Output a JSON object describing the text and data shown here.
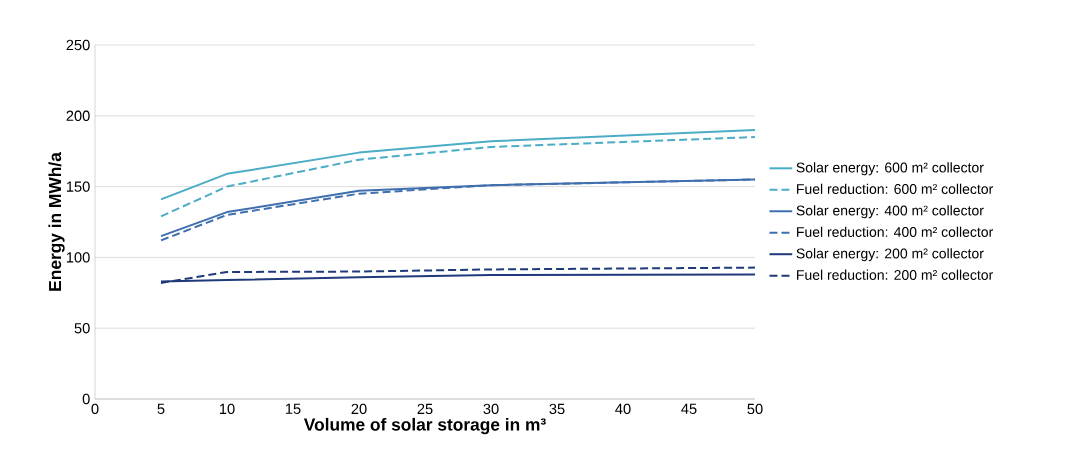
{
  "chart_data": {
    "type": "line",
    "xlabel": "Volume of solar storage in m³",
    "ylabel": "Energy in MWh/a",
    "xlim": [
      0,
      50
    ],
    "xticks": [
      0,
      5,
      10,
      15,
      20,
      25,
      30,
      35,
      40,
      45,
      50
    ],
    "ylim": [
      0,
      250
    ],
    "yticks": [
      0,
      50,
      100,
      150,
      200,
      250
    ],
    "grid": "y",
    "legend": "right",
    "marker": "none",
    "x": [
      5,
      10,
      20,
      30,
      50
    ],
    "series": [
      {
        "name": "Solar energy: 600 m² collector",
        "color": "#4bacc6",
        "line_style": "solid",
        "values": [
          141,
          159,
          174,
          182,
          190
        ]
      },
      {
        "name": "Fuel reduction: 600 m² collector",
        "color": "#4bacc6",
        "line_style": "dashed",
        "values": [
          129,
          150,
          169,
          178,
          185
        ]
      },
      {
        "name": "Solar energy: 400 m² collector",
        "color": "#3f6fae",
        "line_style": "solid",
        "values": [
          115,
          132,
          147,
          151,
          155
        ]
      },
      {
        "name": "Fuel reduction: 400 m² collector",
        "color": "#3f6fae",
        "line_style": "dashed",
        "values": [
          112,
          130,
          145,
          151,
          155
        ]
      },
      {
        "name": "Solar energy: 200 m² collector",
        "color": "#1f3a7a",
        "line_style": "solid",
        "values": [
          83,
          84,
          86,
          87.5,
          88
        ]
      },
      {
        "name": "Fuel reduction: 200 m² collector",
        "color": "#1f3a7a",
        "line_style": "dashed",
        "values": [
          82,
          89.7,
          90,
          91.5,
          92.8
        ]
      }
    ]
  }
}
